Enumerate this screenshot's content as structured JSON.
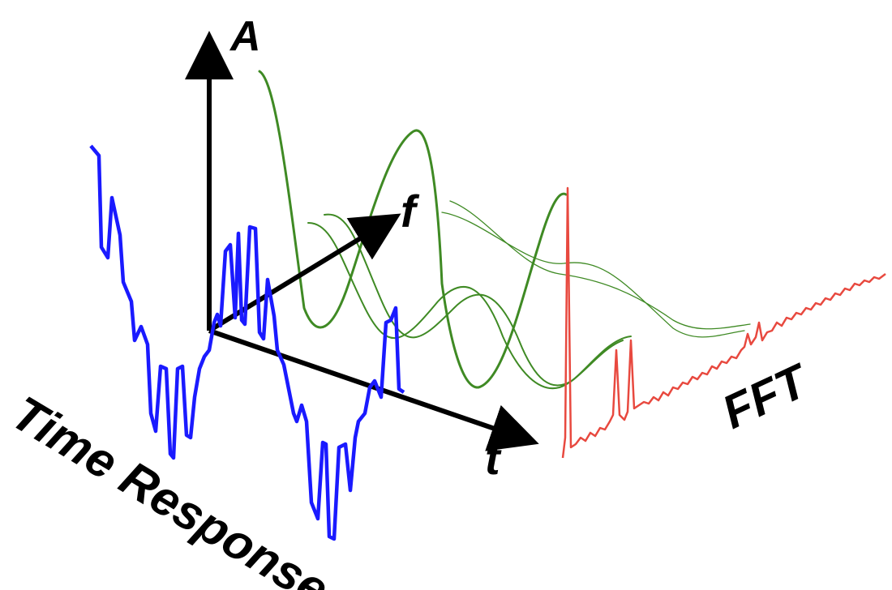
{
  "labels": {
    "amplitude_axis": "A",
    "frequency_axis": "f",
    "time_axis": "t",
    "time_response": "Time Response",
    "fft": "FFT"
  },
  "colors": {
    "axes": "#000000",
    "time_signal": "#1a1aff",
    "sine_components": "#3f8a24",
    "fft_spectrum": "#e8493f"
  }
}
